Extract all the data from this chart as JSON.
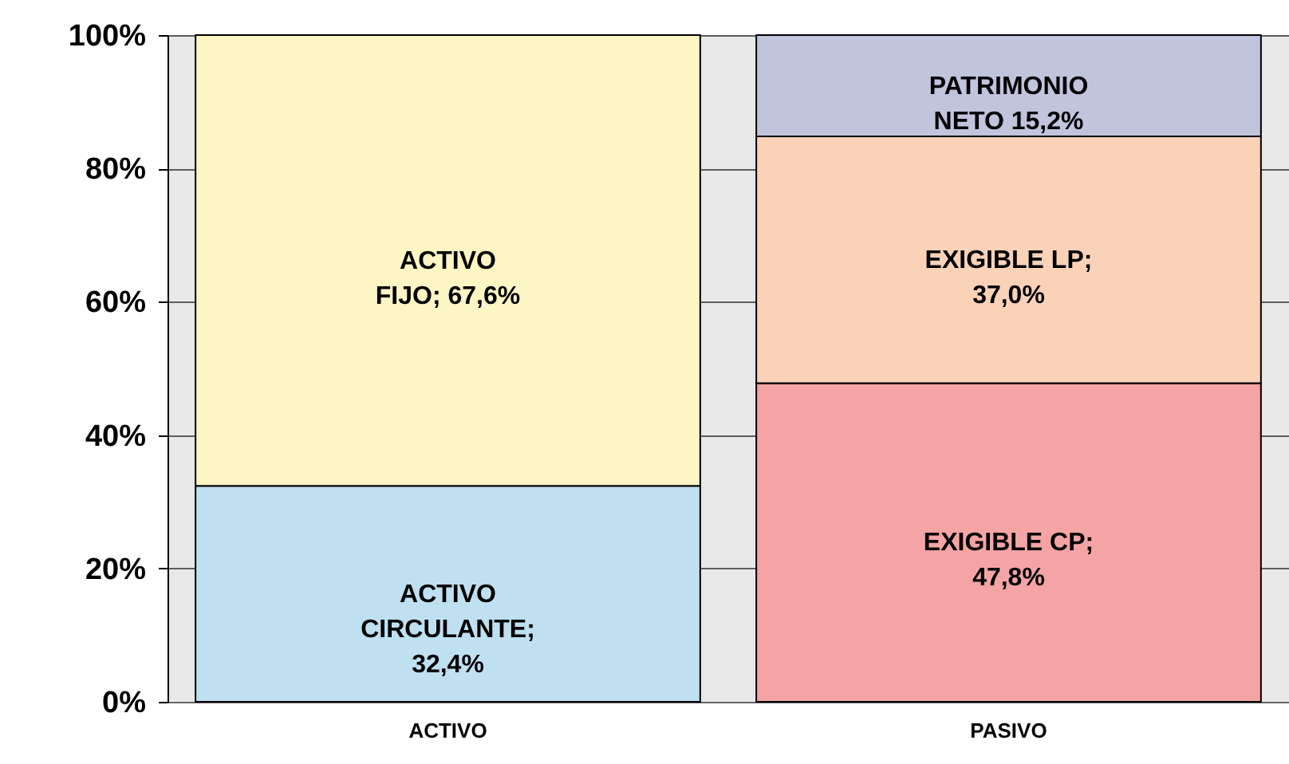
{
  "chart_data": {
    "type": "bar",
    "stacked": true,
    "categories": [
      "ACTIVO",
      "PASIVO"
    ],
    "series": [
      {
        "color": "#bfe0f0",
        "values": [
          32.4,
          null
        ],
        "value_labels": [
          "ACTIVO\nCIRCULANTE;\n32,4%",
          null
        ]
      },
      {
        "color": "#fdf5c4",
        "values": [
          67.6,
          null
        ],
        "value_labels": [
          "ACTIVO\nFIJO; 67,6%",
          null
        ]
      },
      {
        "color": "#f4a4a4",
        "values": [
          null,
          47.8
        ],
        "value_labels": [
          null,
          "EXIGIBLE CP;\n47,8%"
        ]
      },
      {
        "color": "#f9d2b8",
        "values": [
          null,
          37.0
        ],
        "value_labels": [
          null,
          "EXIGIBLE LP;\n37,0%"
        ]
      },
      {
        "color": "#c0c4dc",
        "values": [
          null,
          15.2
        ],
        "value_labels": [
          null,
          "PATRIMONIO\nNETO 15,2%"
        ]
      }
    ],
    "ylim": [
      0,
      100
    ],
    "yticks": [
      {
        "value": 0,
        "label": "0%"
      },
      {
        "value": 20,
        "label": "20%"
      },
      {
        "value": 40,
        "label": "40%"
      },
      {
        "value": 60,
        "label": "60%"
      },
      {
        "value": 80,
        "label": "80%"
      },
      {
        "value": 100,
        "label": "100%"
      }
    ],
    "grid": "y"
  }
}
